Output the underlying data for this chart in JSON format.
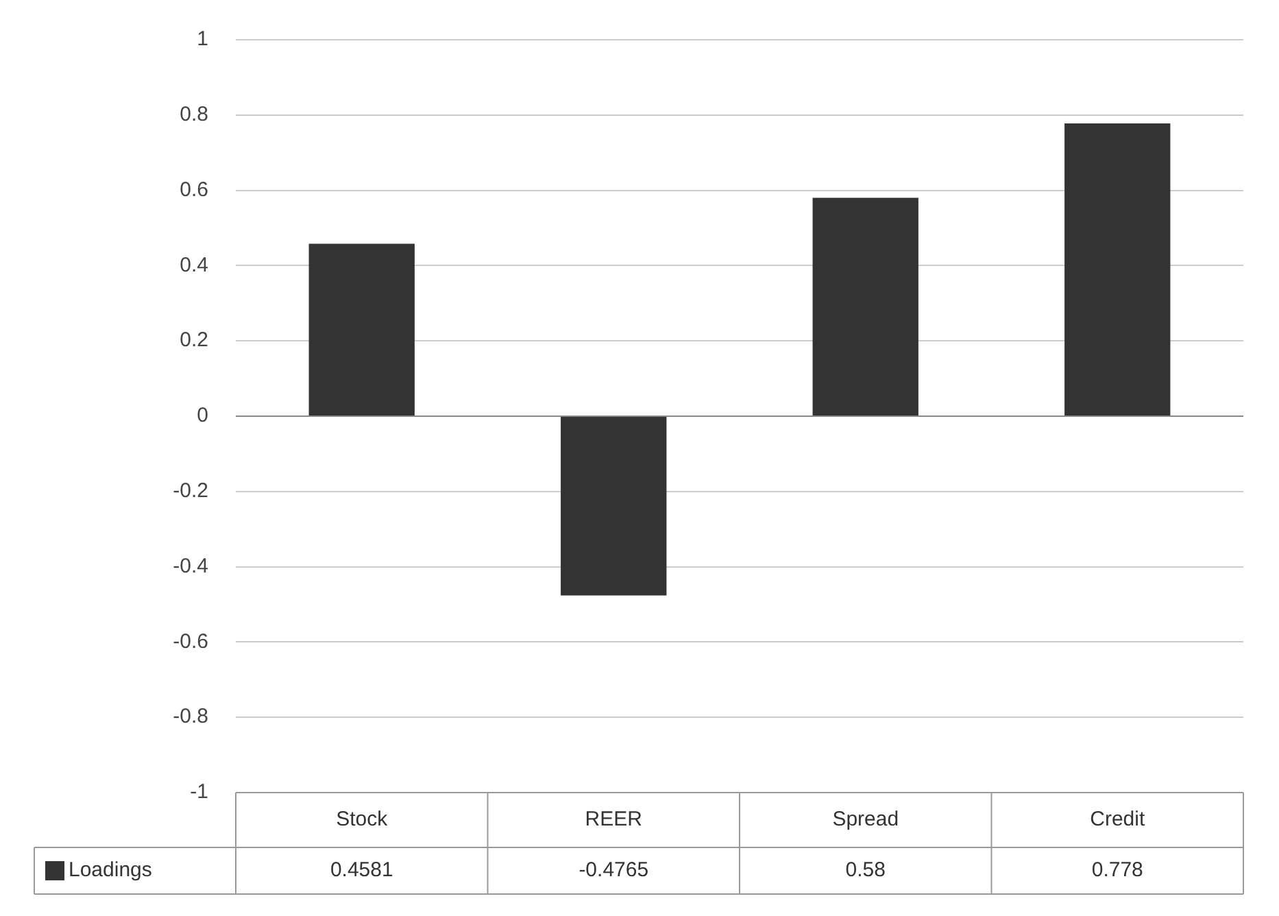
{
  "chart_data": {
    "type": "bar",
    "categories": [
      "Stock",
      "REER",
      "Spread",
      "Credit"
    ],
    "series": [
      {
        "name": "Loadings",
        "color": "#333333",
        "values": [
          0.4581,
          -0.4765,
          0.58,
          0.778
        ]
      }
    ],
    "ylim": [
      -1,
      1
    ],
    "yticks": [
      -1,
      -0.8,
      -0.6,
      -0.4,
      -0.2,
      0,
      0.2,
      0.4,
      0.6,
      0.8,
      1
    ],
    "grid": "y",
    "data_labels": true
  }
}
